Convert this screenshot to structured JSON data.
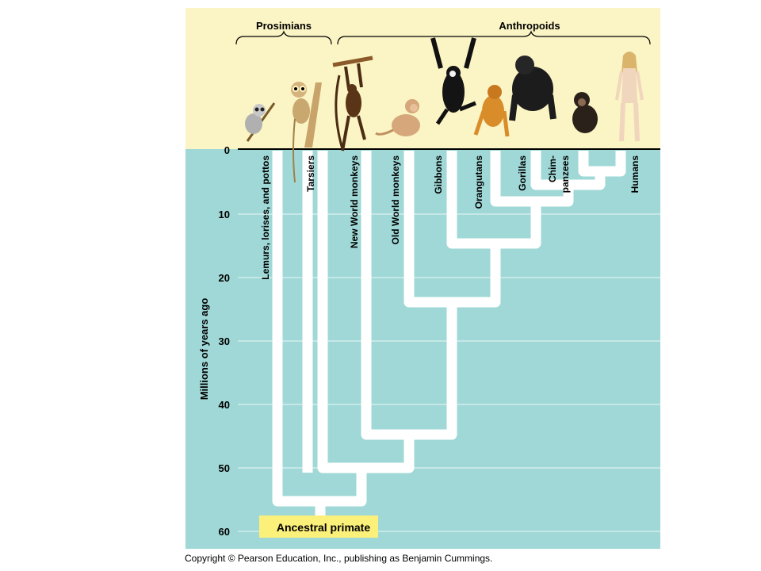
{
  "groups": {
    "prosimians": "Prosimians",
    "anthropoids": "Anthropoids"
  },
  "axis": {
    "label": "Millions of years ago",
    "ticks": [
      "0",
      "10",
      "20",
      "30",
      "40",
      "50",
      "60"
    ]
  },
  "taxa": [
    "Lemurs, lorises, and pottos",
    "Tarsiers",
    "New World monkeys",
    "Old World monkeys",
    "Gibbons",
    "Orangutans",
    "Gorillas",
    "Humans"
  ],
  "chimp_label": {
    "line1": "Chim-",
    "line2": "panzees"
  },
  "ancestor_label": "Ancestral primate",
  "copyright": "Copyright © Pearson Education, Inc., publishing as Benjamin Cummings.",
  "colors": {
    "header": "#FBF4C4",
    "plot": "#9FD8D6",
    "branch": "#FFFFFF",
    "ancestor_box": "#FBF07A"
  },
  "animals": [
    "lemur",
    "tarsier",
    "spider-monkey",
    "macaque",
    "gibbon",
    "orangutan",
    "gorilla",
    "chimpanzee",
    "human"
  ]
}
